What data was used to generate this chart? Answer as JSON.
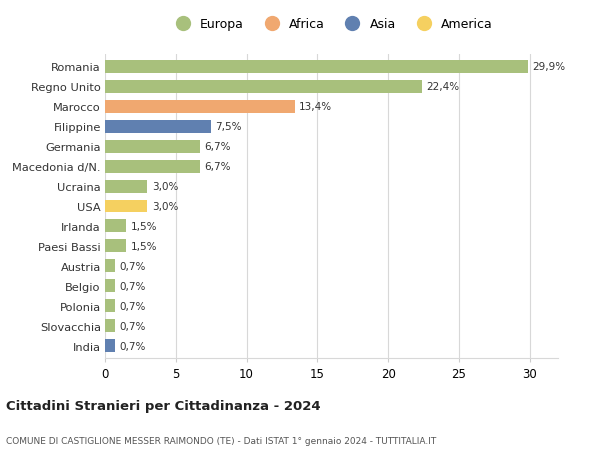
{
  "categories": [
    "Romania",
    "Regno Unito",
    "Marocco",
    "Filippine",
    "Germania",
    "Macedonia d/N.",
    "Ucraina",
    "USA",
    "Irlanda",
    "Paesi Bassi",
    "Austria",
    "Belgio",
    "Polonia",
    "Slovacchia",
    "India"
  ],
  "values": [
    29.9,
    22.4,
    13.4,
    7.5,
    6.7,
    6.7,
    3.0,
    3.0,
    1.5,
    1.5,
    0.7,
    0.7,
    0.7,
    0.7,
    0.7
  ],
  "labels": [
    "29,9%",
    "22,4%",
    "13,4%",
    "7,5%",
    "6,7%",
    "6,7%",
    "3,0%",
    "3,0%",
    "1,5%",
    "1,5%",
    "0,7%",
    "0,7%",
    "0,7%",
    "0,7%",
    "0,7%"
  ],
  "continents": [
    "Europa",
    "Europa",
    "Africa",
    "Asia",
    "Europa",
    "Europa",
    "Europa",
    "America",
    "Europa",
    "Europa",
    "Europa",
    "Europa",
    "Europa",
    "Europa",
    "Asia"
  ],
  "colors": {
    "Europa": "#a8c07c",
    "Africa": "#f0a870",
    "Asia": "#6080b0",
    "America": "#f5d060"
  },
  "legend_order": [
    "Europa",
    "Africa",
    "Asia",
    "America"
  ],
  "title": "Cittadini Stranieri per Cittadinanza - 2024",
  "subtitle": "COMUNE DI CASTIGLIONE MESSER RAIMONDO (TE) - Dati ISTAT 1° gennaio 2024 - TUTTITALIA.IT",
  "xlim": [
    0,
    32
  ],
  "xticks": [
    0,
    5,
    10,
    15,
    20,
    25,
    30
  ],
  "background_color": "#ffffff",
  "grid_color": "#d8d8d8",
  "bar_height": 0.65
}
